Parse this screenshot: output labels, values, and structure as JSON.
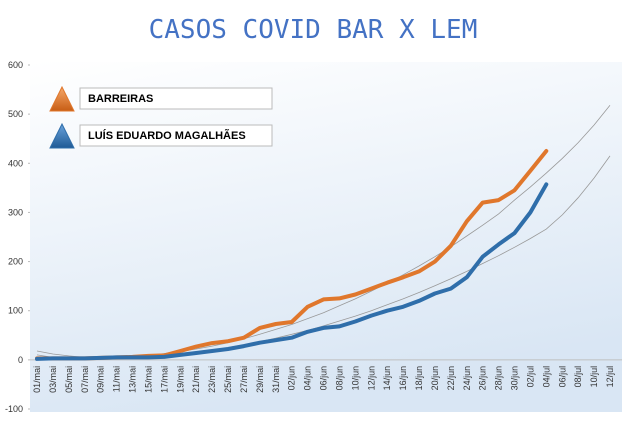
{
  "chart_data": {
    "type": "line",
    "title": "CASOS COVID BAR X LEM",
    "categories": [
      "01/mai",
      "03/mai",
      "05/mai",
      "07/mai",
      "09/mai",
      "11/mai",
      "13/mai",
      "15/mai",
      "17/mai",
      "19/mai",
      "21/mai",
      "23/mai",
      "25/mai",
      "27/mai",
      "29/mai",
      "31/mai",
      "02/jun",
      "04/jun",
      "06/jun",
      "08/jun",
      "10/jun",
      "12/jun",
      "14/jun",
      "16/jun",
      "18/jun",
      "20/jun",
      "22/jun",
      "24/jun",
      "26/jun",
      "28/jun",
      "30/jun",
      "02/jul",
      "04/jul",
      "06/jul",
      "08/jul",
      "10/jul",
      "12/jul"
    ],
    "series": [
      {
        "name": "BARREIRAS",
        "color": "#e0772c",
        "values": [
          3,
          3,
          3,
          3,
          4,
          5,
          6,
          8,
          9,
          18,
          27,
          34,
          38,
          45,
          65,
          73,
          77,
          108,
          123,
          125,
          133,
          145,
          157,
          168,
          180,
          200,
          232,
          282,
          320,
          325,
          345,
          385,
          425,
          null,
          null,
          null,
          null
        ]
      },
      {
        "name": "LUÍS EDUARDO MAGALHÃES",
        "color": "#2f6eaa",
        "values": [
          2,
          3,
          3,
          3,
          4,
          5,
          5,
          5,
          6,
          10,
          14,
          18,
          22,
          28,
          35,
          40,
          45,
          57,
          65,
          68,
          78,
          90,
          100,
          108,
          120,
          135,
          145,
          168,
          210,
          235,
          258,
          300,
          357,
          null,
          null,
          null,
          null
        ]
      }
    ],
    "trendlines": [
      {
        "color": "#999999",
        "values": [
          10,
          5,
          3,
          2,
          3,
          4,
          6,
          9,
          13,
          17,
          22,
          28,
          35,
          43,
          52,
          62,
          72,
          84,
          96,
          110,
          124,
          140,
          156,
          173,
          191,
          210,
          230,
          252,
          274,
          297,
          325,
          352,
          380,
          410,
          442,
          478,
          518
        ]
      },
      {
        "color": "#999999",
        "values": [
          18,
          12,
          8,
          5,
          4,
          4,
          5,
          7,
          9,
          12,
          16,
          20,
          25,
          31,
          37,
          44,
          52,
          60,
          69,
          79,
          89,
          100,
          112,
          124,
          137,
          151,
          165,
          180,
          196,
          212,
          229,
          247,
          266,
          295,
          330,
          370,
          415
        ]
      }
    ],
    "ylim": [
      -100,
      600
    ],
    "yticks": [
      -100,
      0,
      100,
      200,
      300,
      400,
      500,
      600
    ]
  }
}
